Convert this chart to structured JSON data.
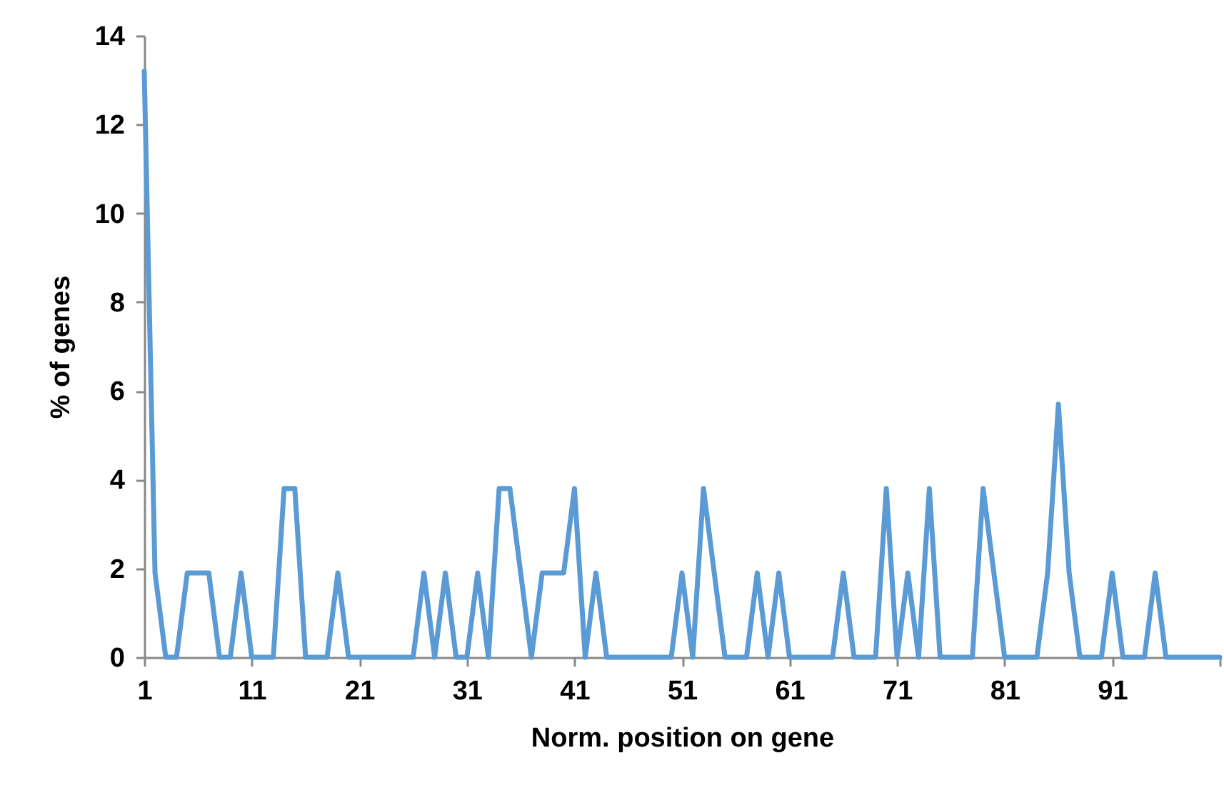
{
  "chart_data": {
    "type": "line",
    "xlabel": "Norm. position on gene",
    "ylabel": "% of genes",
    "x": [
      1,
      2,
      3,
      4,
      5,
      6,
      7,
      8,
      9,
      10,
      11,
      12,
      13,
      14,
      15,
      16,
      17,
      18,
      19,
      20,
      21,
      22,
      23,
      24,
      25,
      26,
      27,
      28,
      29,
      30,
      31,
      32,
      33,
      34,
      35,
      36,
      37,
      38,
      39,
      40,
      41,
      42,
      43,
      44,
      45,
      46,
      47,
      48,
      49,
      50,
      51,
      52,
      53,
      54,
      55,
      56,
      57,
      58,
      59,
      60,
      61,
      62,
      63,
      64,
      65,
      66,
      67,
      68,
      69,
      70,
      71,
      72,
      73,
      74,
      75,
      76,
      77,
      78,
      79,
      80,
      81,
      82,
      83,
      84,
      85,
      86,
      87,
      88,
      89,
      90,
      91,
      92,
      93,
      94,
      95,
      96,
      97,
      98,
      99,
      100,
      101
    ],
    "series": [
      {
        "color": "#5b9bd5",
        "values": [
          13.2,
          1.9,
          0,
          0,
          1.9,
          1.9,
          1.9,
          0,
          0,
          1.9,
          0,
          0,
          0,
          3.8,
          3.8,
          0,
          0,
          0,
          1.9,
          0,
          0,
          0,
          0,
          0,
          0,
          0,
          1.9,
          0,
          1.9,
          0,
          0,
          1.9,
          0,
          3.8,
          3.8,
          1.9,
          0,
          1.9,
          1.9,
          1.9,
          3.8,
          0,
          1.9,
          0,
          0,
          0,
          0,
          0,
          0,
          0,
          1.9,
          0,
          3.8,
          1.9,
          0,
          0,
          0,
          1.9,
          0,
          1.9,
          0,
          0,
          0,
          0,
          0,
          1.9,
          0,
          0,
          0,
          3.8,
          0,
          1.9,
          0,
          3.8,
          0,
          0,
          0,
          0,
          3.8,
          1.9,
          0,
          0,
          0,
          0,
          1.9,
          5.7,
          1.9,
          0,
          0,
          0,
          1.9,
          0,
          0,
          0,
          1.9,
          0,
          0,
          0,
          0,
          0,
          0
        ]
      }
    ],
    "xlim": [
      1,
      101
    ],
    "xticks": [
      1,
      11,
      21,
      31,
      41,
      51,
      61,
      71,
      81,
      91,
      {
        "value": 101,
        "label": null
      }
    ],
    "ylim": [
      0,
      14
    ],
    "yticks": [
      0,
      2,
      4,
      6,
      8,
      10,
      12,
      14
    ],
    "grid": false,
    "marker": "none",
    "line_style": "solid"
  }
}
